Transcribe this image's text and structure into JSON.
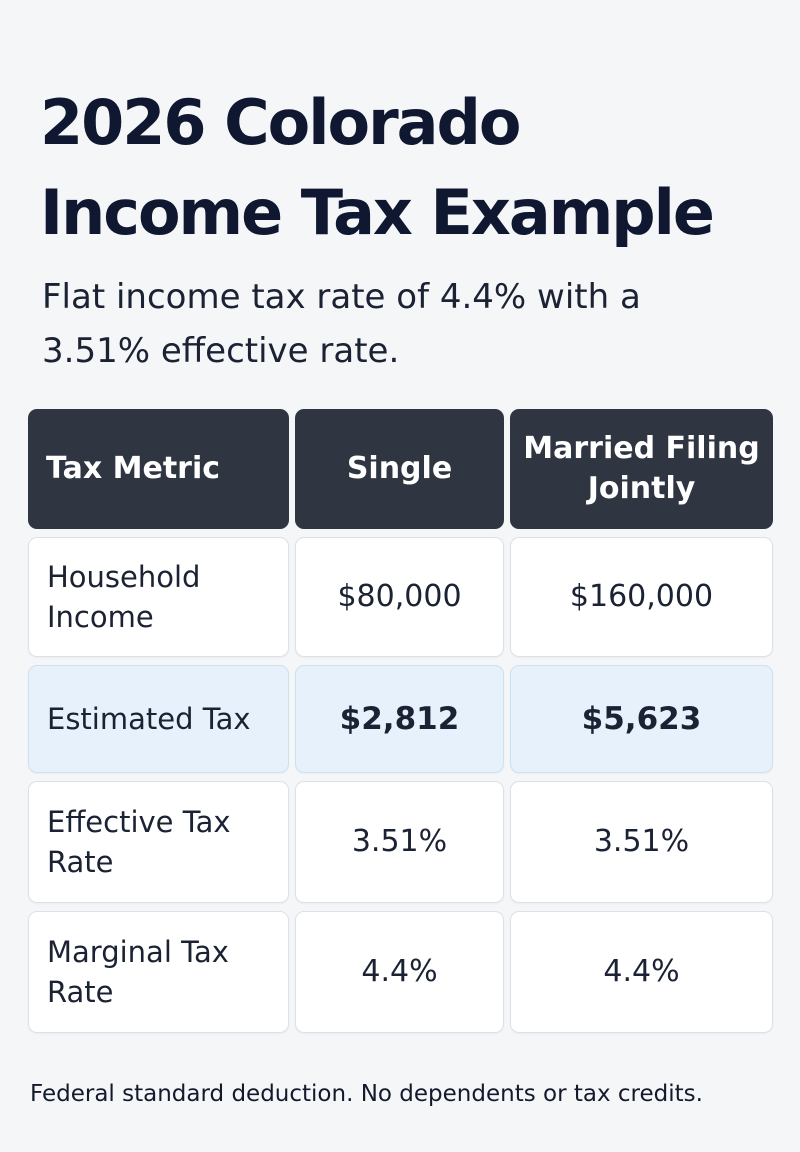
{
  "title": "2026 Colorado Income Tax Example",
  "subtitle": "Flat income tax rate of 4.4% with a 3.51% effective rate.",
  "table": {
    "headers": [
      "Tax Metric",
      "Single",
      "Married Filing Jointly"
    ],
    "rows": [
      {
        "metric": "Household Income",
        "single": "$80,000",
        "married": "$160,000",
        "highlighted": false
      },
      {
        "metric": "Estimated Tax",
        "single": "$2,812",
        "married": "$5,623",
        "highlighted": true
      },
      {
        "metric": "Effective Tax Rate",
        "single": "3.51%",
        "married": "3.51%",
        "highlighted": false
      },
      {
        "metric": "Marginal Tax Rate",
        "single": "4.4%",
        "married": "4.4%",
        "highlighted": false
      }
    ]
  },
  "footnote": "Federal standard deduction. No dependents or tax credits.",
  "colors": {
    "header_bg": "#2f3642",
    "highlight_bg": "#e6f1fb",
    "title_text": "#101730"
  }
}
